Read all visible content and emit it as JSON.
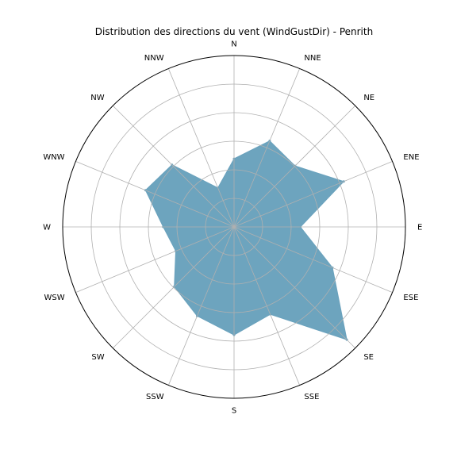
{
  "chart_data": {
    "type": "area",
    "projection": "polar",
    "title": "Distribution des directions du vent (WindGustDir) - Penrith",
    "directions": [
      "N",
      "NNE",
      "NE",
      "ENE",
      "E",
      "ESE",
      "SE",
      "SSE",
      "S",
      "SSW",
      "SW",
      "WSW",
      "W",
      "WNW",
      "NW",
      "NNW"
    ],
    "values": [
      229,
      313,
      290,
      399,
      223,
      358,
      536,
      318,
      363,
      324,
      284,
      212,
      238,
      322,
      295,
      142
    ],
    "rlim": [
      0,
      576
    ],
    "rings": [
      96,
      192,
      288,
      384,
      480,
      576
    ],
    "radial_tick_labels_shown": false,
    "orientation": "N at top, clockwise",
    "grid": true,
    "color": "#6aa2bd"
  }
}
